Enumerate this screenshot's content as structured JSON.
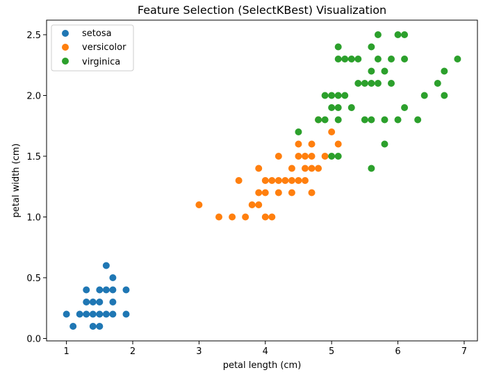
{
  "chart_data": {
    "type": "scatter",
    "title": "Feature Selection (SelectKBest) Visualization",
    "xlabel": "petal length (cm)",
    "ylabel": "petal width (cm)",
    "xlim": [
      0.7,
      7.2
    ],
    "ylim": [
      -0.02,
      2.62
    ],
    "x_ticks": [
      1,
      2,
      3,
      4,
      5,
      6,
      7
    ],
    "y_ticks": [
      0.0,
      0.5,
      1.0,
      1.5,
      2.0,
      2.5
    ],
    "x_tick_labels": [
      "1",
      "2",
      "3",
      "4",
      "5",
      "6",
      "7"
    ],
    "y_tick_labels": [
      "0.0",
      "0.5",
      "1.0",
      "1.5",
      "2.0",
      "2.5"
    ],
    "grid": false,
    "legend_position": "top-left",
    "series": [
      {
        "name": "setosa",
        "color": "#1f77b4",
        "points": [
          [
            1.0,
            0.2
          ],
          [
            1.1,
            0.1
          ],
          [
            1.2,
            0.2
          ],
          [
            1.3,
            0.2
          ],
          [
            1.3,
            0.3
          ],
          [
            1.3,
            0.4
          ],
          [
            1.4,
            0.1
          ],
          [
            1.4,
            0.2
          ],
          [
            1.4,
            0.3
          ],
          [
            1.5,
            0.1
          ],
          [
            1.5,
            0.2
          ],
          [
            1.5,
            0.3
          ],
          [
            1.5,
            0.4
          ],
          [
            1.6,
            0.2
          ],
          [
            1.6,
            0.4
          ],
          [
            1.6,
            0.6
          ],
          [
            1.7,
            0.2
          ],
          [
            1.7,
            0.3
          ],
          [
            1.7,
            0.4
          ],
          [
            1.7,
            0.5
          ],
          [
            1.9,
            0.2
          ],
          [
            1.9,
            0.4
          ]
        ]
      },
      {
        "name": "versicolor",
        "color": "#ff7f0e",
        "points": [
          [
            3.0,
            1.1
          ],
          [
            3.3,
            1.0
          ],
          [
            3.5,
            1.0
          ],
          [
            3.6,
            1.3
          ],
          [
            3.7,
            1.0
          ],
          [
            3.8,
            1.1
          ],
          [
            3.9,
            1.1
          ],
          [
            3.9,
            1.2
          ],
          [
            3.9,
            1.4
          ],
          [
            4.0,
            1.0
          ],
          [
            4.0,
            1.2
          ],
          [
            4.0,
            1.3
          ],
          [
            4.1,
            1.0
          ],
          [
            4.1,
            1.3
          ],
          [
            4.2,
            1.2
          ],
          [
            4.2,
            1.3
          ],
          [
            4.2,
            1.5
          ],
          [
            4.3,
            1.3
          ],
          [
            4.4,
            1.2
          ],
          [
            4.4,
            1.3
          ],
          [
            4.4,
            1.4
          ],
          [
            4.5,
            1.3
          ],
          [
            4.5,
            1.5
          ],
          [
            4.5,
            1.6
          ],
          [
            4.6,
            1.3
          ],
          [
            4.6,
            1.4
          ],
          [
            4.6,
            1.5
          ],
          [
            4.7,
            1.2
          ],
          [
            4.7,
            1.4
          ],
          [
            4.7,
            1.5
          ],
          [
            4.7,
            1.6
          ],
          [
            4.8,
            1.4
          ],
          [
            4.8,
            1.8
          ],
          [
            4.9,
            1.5
          ],
          [
            5.0,
            1.7
          ],
          [
            5.1,
            1.6
          ]
        ]
      },
      {
        "name": "virginica",
        "color": "#2ca02c",
        "points": [
          [
            4.5,
            1.7
          ],
          [
            4.8,
            1.8
          ],
          [
            4.9,
            1.8
          ],
          [
            4.9,
            2.0
          ],
          [
            5.0,
            1.5
          ],
          [
            5.0,
            1.9
          ],
          [
            5.0,
            2.0
          ],
          [
            5.1,
            1.5
          ],
          [
            5.1,
            1.8
          ],
          [
            5.1,
            1.9
          ],
          [
            5.1,
            2.0
          ],
          [
            5.1,
            2.3
          ],
          [
            5.1,
            2.4
          ],
          [
            5.2,
            2.0
          ],
          [
            5.2,
            2.3
          ],
          [
            5.3,
            1.9
          ],
          [
            5.3,
            2.3
          ],
          [
            5.4,
            2.1
          ],
          [
            5.4,
            2.3
          ],
          [
            5.5,
            1.8
          ],
          [
            5.5,
            2.1
          ],
          [
            5.6,
            1.4
          ],
          [
            5.6,
            1.8
          ],
          [
            5.6,
            2.1
          ],
          [
            5.6,
            2.2
          ],
          [
            5.6,
            2.4
          ],
          [
            5.7,
            2.1
          ],
          [
            5.7,
            2.3
          ],
          [
            5.7,
            2.5
          ],
          [
            5.8,
            1.6
          ],
          [
            5.8,
            1.8
          ],
          [
            5.8,
            2.2
          ],
          [
            5.9,
            2.1
          ],
          [
            5.9,
            2.3
          ],
          [
            6.0,
            1.8
          ],
          [
            6.0,
            2.5
          ],
          [
            6.1,
            1.9
          ],
          [
            6.1,
            2.3
          ],
          [
            6.1,
            2.5
          ],
          [
            6.3,
            1.8
          ],
          [
            6.4,
            2.0
          ],
          [
            6.6,
            2.1
          ],
          [
            6.7,
            2.0
          ],
          [
            6.7,
            2.2
          ],
          [
            6.9,
            2.3
          ]
        ]
      }
    ]
  }
}
